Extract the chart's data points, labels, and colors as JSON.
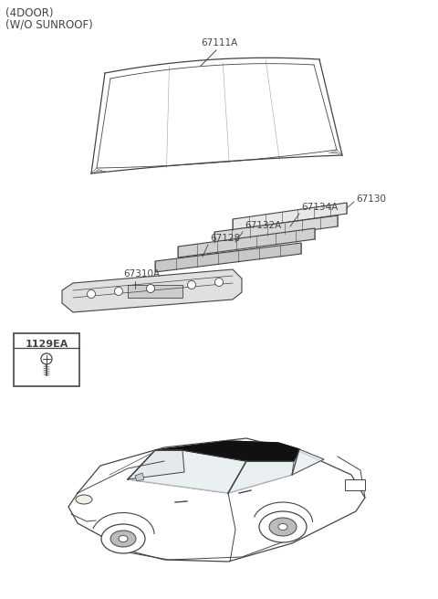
{
  "title_line1": "(4DOOR)",
  "title_line2": "(W/O SUNROOF)",
  "bg_color": "#ffffff",
  "line_color": "#444444",
  "part_label_67111A": "67111A",
  "part_label_67130": "67130",
  "part_label_67134A": "67134A",
  "part_label_67132A": "67132A",
  "part_label_67128": "67128",
  "part_label_67310A": "67310A",
  "fastener_label": "1129EA",
  "font_size_title": 8.5,
  "font_size_parts": 7.5,
  "font_size_fastener": 7
}
